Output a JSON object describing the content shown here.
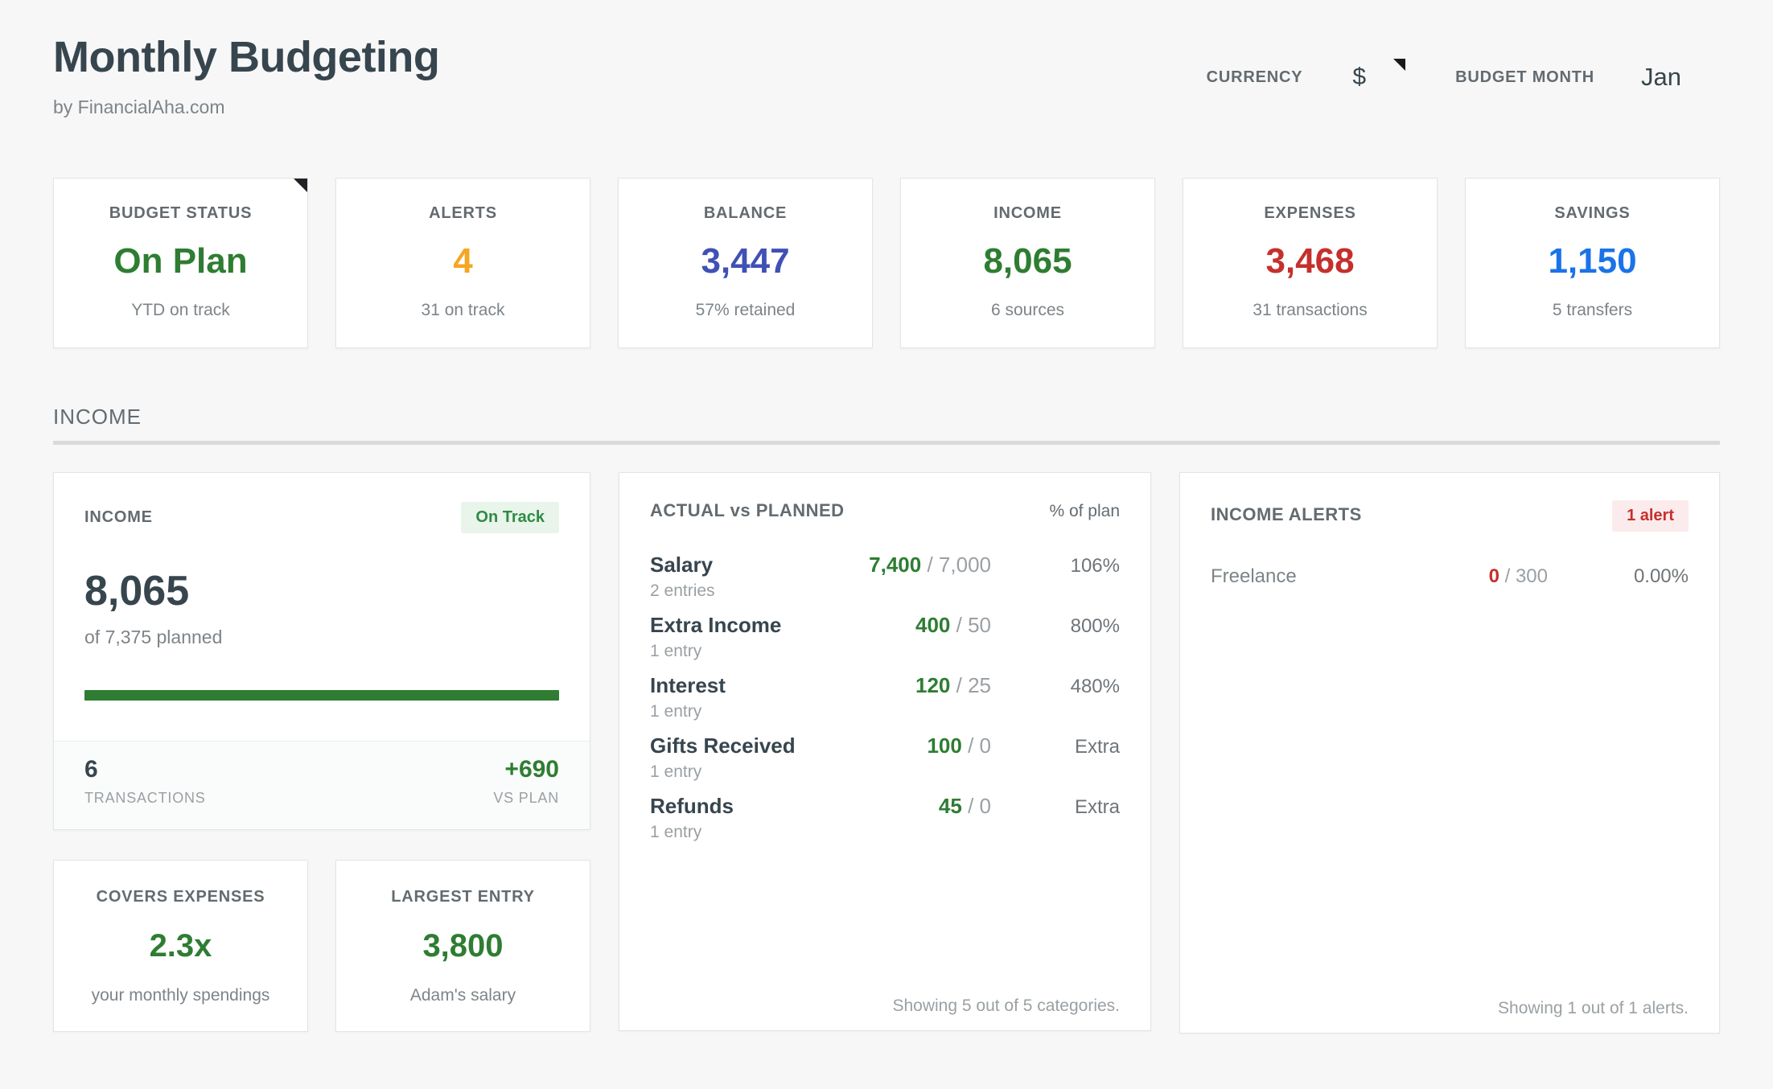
{
  "header": {
    "title": "Monthly Budgeting",
    "subtitle": "by FinancialAha.com",
    "currency_label": "CURRENCY",
    "currency_value": "$",
    "budget_month_label": "BUDGET MONTH",
    "budget_month_value": "Jan"
  },
  "kpi_cards": [
    {
      "label": "BUDGET STATUS",
      "value": "On Plan",
      "caption": "YTD on track",
      "color": "#2e7d32",
      "corner_note": true
    },
    {
      "label": "ALERTS",
      "value": "4",
      "caption": "31 on track",
      "color": "#f5a623"
    },
    {
      "label": "BALANCE",
      "value": "3,447",
      "caption": "57% retained",
      "color": "#3f51b5"
    },
    {
      "label": "INCOME",
      "value": "8,065",
      "caption": "6 sources",
      "color": "#2e7d32"
    },
    {
      "label": "EXPENSES",
      "value": "3,468",
      "caption": "31 transactions",
      "color": "#c5302c"
    },
    {
      "label": "SAVINGS",
      "value": "1,150",
      "caption": "5 transfers",
      "color": "#1a73e8"
    }
  ],
  "section": {
    "title": "INCOME"
  },
  "income_card": {
    "label": "INCOME",
    "badge": "On Track",
    "value": "8,065",
    "planned": "of 7,375 planned",
    "progress_pct": 100,
    "transactions_value": "6",
    "transactions_label": "TRANSACTIONS",
    "vs_plan_value": "+690",
    "vs_plan_label": "VS PLAN"
  },
  "actual_vs_planned": {
    "title": "ACTUAL vs PLANNED",
    "col_header": "% of plan",
    "separator": "/",
    "rows": [
      {
        "name": "Salary",
        "actual": "7,400",
        "planned": "7,000",
        "pct": "106%",
        "entries": "2 entries"
      },
      {
        "name": "Extra Income",
        "actual": "400",
        "planned": "50",
        "pct": "800%",
        "entries": "1 entry"
      },
      {
        "name": "Interest",
        "actual": "120",
        "planned": "25",
        "pct": "480%",
        "entries": "1 entry"
      },
      {
        "name": "Gifts Received",
        "actual": "100",
        "planned": "0",
        "pct": "Extra",
        "entries": "1 entry"
      },
      {
        "name": "Refunds",
        "actual": "45",
        "planned": "0",
        "pct": "Extra",
        "entries": "1 entry"
      }
    ],
    "footer": "Showing 5 out of 5 categories."
  },
  "income_alerts": {
    "title": "INCOME ALERTS",
    "badge": "1 alert",
    "separator": "/",
    "rows": [
      {
        "name": "Freelance",
        "actual": "0",
        "planned": "300",
        "pct": "0.00%"
      }
    ],
    "footer": "Showing 1 out of 1 alerts."
  },
  "covers_expenses": {
    "label": "COVERS EXPENSES",
    "value": "2.3x",
    "caption": "your monthly spendings"
  },
  "largest_entry": {
    "label": "LARGEST ENTRY",
    "value": "3,800",
    "caption": "Adam's salary"
  },
  "colors": {
    "page_bg": "#f7f7f7",
    "card_border": "#e3e4e5",
    "dark": "#37454e",
    "label_gray": "#636b70",
    "caption_gray": "#7d8488",
    "faint_gray": "#9aa0a4",
    "green": "#2e7d32",
    "badge_green_text": "#2e8b44",
    "badge_green_bg": "#e9f4eb",
    "orange": "#f5a623",
    "indigo": "#3f51b5",
    "blue": "#1a73e8",
    "red": "#c5302c",
    "badge_red_bg": "#fcebec"
  }
}
